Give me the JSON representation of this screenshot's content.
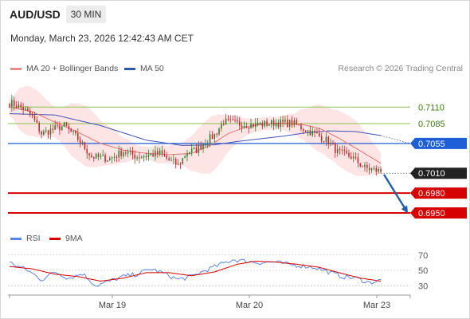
{
  "header": {
    "symbol": "AUD/USD",
    "timeframe": "30 MIN",
    "datetime": "Monday, March 23, 2026 12:42:43 AM CET"
  },
  "legend": {
    "ma20_label": "MA 20 + Bollinger Bands",
    "ma50_label": "MA 50",
    "credit": "Research © 2026 Trading Central",
    "rsi_label": "RSI",
    "ma9_label": "9MA"
  },
  "colors": {
    "bull": "#2e7d32",
    "bear": "#c62828",
    "band_fill": "#fde0e0",
    "ma20": "#e57373",
    "ma50": "#3f51b5",
    "resistance": "#8bc34a",
    "pivot": "#1e5fd8",
    "support": "#d60000",
    "current": "#222222",
    "rsi": "#5b86e5",
    "rsi_ma": "#d60000",
    "arrow": "#2160a8"
  },
  "chart_data": [
    {
      "type": "candlestick",
      "x_ticks": [
        "Mar 19",
        "Mar 20",
        "Mar 23"
      ],
      "ylim": [
        0.6944,
        0.7132
      ],
      "levels": [
        {
          "value": 0.711,
          "label": "0.7110",
          "kind": "resistance"
        },
        {
          "value": 0.7085,
          "label": "0.7085",
          "kind": "resistance"
        },
        {
          "value": 0.7055,
          "label": "0.7055",
          "kind": "pivot"
        },
        {
          "value": 0.701,
          "label": "0.7010",
          "kind": "current"
        },
        {
          "value": 0.698,
          "label": "0.6980",
          "kind": "support"
        },
        {
          "value": 0.695,
          "label": "0.6950",
          "kind": "support"
        }
      ],
      "close_anchors": [
        [
          0,
          0.7117
        ],
        [
          6,
          0.7108
        ],
        [
          10,
          0.7095
        ],
        [
          14,
          0.707
        ],
        [
          18,
          0.7075
        ],
        [
          24,
          0.7082
        ],
        [
          30,
          0.7062
        ],
        [
          36,
          0.7035
        ],
        [
          44,
          0.7032
        ],
        [
          50,
          0.7043
        ],
        [
          56,
          0.7035
        ],
        [
          62,
          0.7038
        ],
        [
          66,
          0.704
        ],
        [
          70,
          0.703
        ],
        [
          74,
          0.7022
        ],
        [
          78,
          0.7042
        ],
        [
          82,
          0.7045
        ],
        [
          86,
          0.7058
        ],
        [
          90,
          0.7068
        ],
        [
          94,
          0.7088
        ],
        [
          100,
          0.7085
        ],
        [
          108,
          0.7083
        ],
        [
          116,
          0.7086
        ],
        [
          124,
          0.7086
        ],
        [
          130,
          0.7076
        ],
        [
          136,
          0.7066
        ],
        [
          140,
          0.7058
        ],
        [
          144,
          0.7042
        ],
        [
          150,
          0.7035
        ],
        [
          156,
          0.7018
        ],
        [
          160,
          0.7015
        ],
        [
          163,
          0.7013
        ]
      ],
      "ma20_anchors": [
        [
          0,
          0.711
        ],
        [
          10,
          0.7103
        ],
        [
          20,
          0.7087
        ],
        [
          30,
          0.7072
        ],
        [
          40,
          0.7055
        ],
        [
          50,
          0.7045
        ],
        [
          60,
          0.704
        ],
        [
          70,
          0.7038
        ],
        [
          80,
          0.704
        ],
        [
          88,
          0.7052
        ],
        [
          96,
          0.707
        ],
        [
          104,
          0.708
        ],
        [
          112,
          0.7085
        ],
        [
          120,
          0.7086
        ],
        [
          128,
          0.7084
        ],
        [
          136,
          0.7078
        ],
        [
          144,
          0.7064
        ],
        [
          152,
          0.7048
        ],
        [
          163,
          0.7025
        ]
      ],
      "ma50_anchors": [
        [
          0,
          0.71
        ],
        [
          20,
          0.7098
        ],
        [
          40,
          0.7082
        ],
        [
          60,
          0.706
        ],
        [
          76,
          0.7052
        ],
        [
          90,
          0.7053
        ],
        [
          100,
          0.7058
        ],
        [
          110,
          0.7062
        ],
        [
          120,
          0.7066
        ],
        [
          130,
          0.7071
        ],
        [
          140,
          0.7074
        ],
        [
          152,
          0.7073
        ],
        [
          163,
          0.7067
        ]
      ],
      "forecast_arrow": {
        "from": 0.7008,
        "to": 0.695
      }
    },
    {
      "type": "line",
      "title": "RSI",
      "ylim": [
        22,
        76
      ],
      "y_ticks": [
        70,
        50,
        30
      ],
      "rsi_anchors": [
        [
          0,
          60
        ],
        [
          8,
          50
        ],
        [
          14,
          38
        ],
        [
          20,
          48
        ],
        [
          26,
          40
        ],
        [
          32,
          46
        ],
        [
          38,
          30
        ],
        [
          44,
          36
        ],
        [
          50,
          42
        ],
        [
          56,
          45
        ],
        [
          62,
          52
        ],
        [
          68,
          46
        ],
        [
          74,
          38
        ],
        [
          80,
          42
        ],
        [
          86,
          50
        ],
        [
          92,
          57
        ],
        [
          98,
          64
        ],
        [
          104,
          62
        ],
        [
          110,
          60
        ],
        [
          116,
          61
        ],
        [
          122,
          58
        ],
        [
          128,
          56
        ],
        [
          134,
          54
        ],
        [
          140,
          48
        ],
        [
          146,
          42
        ],
        [
          152,
          40
        ],
        [
          158,
          34
        ],
        [
          163,
          37
        ]
      ],
      "ma9_anchors": [
        [
          0,
          55
        ],
        [
          10,
          52
        ],
        [
          20,
          45
        ],
        [
          30,
          42
        ],
        [
          40,
          36
        ],
        [
          50,
          40
        ],
        [
          60,
          47
        ],
        [
          70,
          47
        ],
        [
          80,
          43
        ],
        [
          90,
          48
        ],
        [
          100,
          58
        ],
        [
          108,
          62
        ],
        [
          116,
          61
        ],
        [
          126,
          58
        ],
        [
          136,
          54
        ],
        [
          146,
          46
        ],
        [
          154,
          40
        ],
        [
          163,
          36
        ]
      ]
    }
  ]
}
